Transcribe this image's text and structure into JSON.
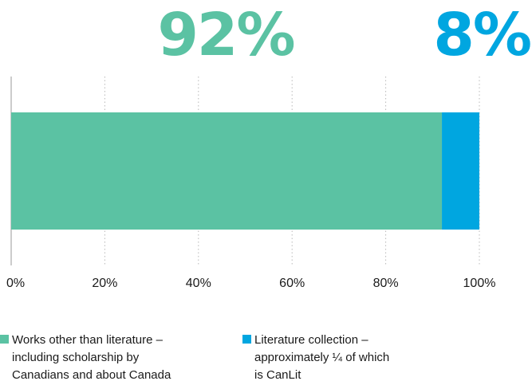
{
  "chart_data": {
    "type": "bar",
    "orientation": "horizontal",
    "stacked": true,
    "categories": [
      ""
    ],
    "series": [
      {
        "name": "Works other than literature – including scholarship by Canadians and about Canada",
        "legend_lines": [
          "Works other than literature –",
          "including scholarship by",
          "Canadians and about Canada"
        ],
        "values": [
          92
        ],
        "label": "92%",
        "color": "#5bc2a3"
      },
      {
        "name": "Literature collection – approximately ¼ of which is CanLit",
        "legend_lines": [
          "Literature collection –",
          "approximately ¼ of which",
          "is CanLit"
        ],
        "values": [
          8
        ],
        "label": "8%",
        "color": "#00a6e0"
      }
    ],
    "xlim": [
      0,
      100
    ],
    "x_ticks": [
      "0%",
      "20%",
      "40%",
      "60%",
      "80%",
      "100%"
    ],
    "grid": "vertical-dotted",
    "legend_position": "bottom"
  }
}
